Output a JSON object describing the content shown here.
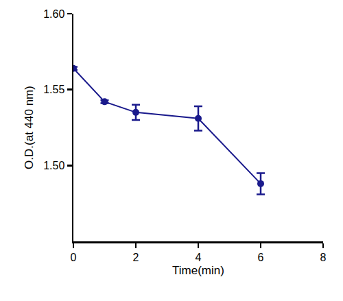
{
  "chart_data": {
    "type": "line",
    "x_label": "Time(min)",
    "y_label": "O.D.(at 440 nm)",
    "x": [
      0,
      1,
      2,
      4,
      6
    ],
    "values": [
      1.564,
      1.542,
      1.535,
      1.531,
      1.488
    ],
    "error": [
      0.001,
      0.001,
      0.005,
      0.008,
      0.007
    ],
    "color": "#1a1a8c",
    "marker": "circle",
    "line_style": "solid",
    "xlim": [
      0,
      8
    ],
    "xticks": [
      0,
      2,
      4,
      6,
      8
    ],
    "ylim": [
      1.45,
      1.6
    ],
    "yticks": [
      {
        "value": 1.5,
        "label": "1.50"
      },
      1.55,
      {
        "value": 1.6,
        "label": "1.60"
      }
    ],
    "grid": false
  }
}
